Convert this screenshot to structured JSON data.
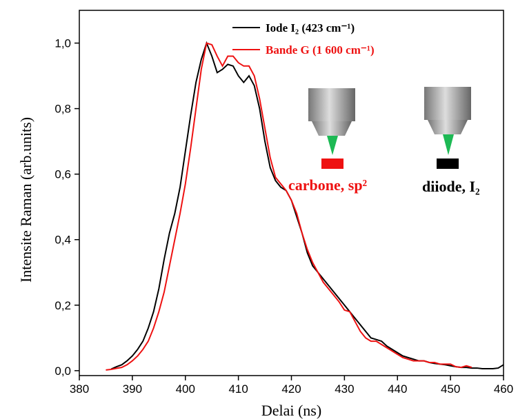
{
  "chart_data": {
    "type": "line",
    "x_label": "Delai (ns)",
    "y_label": "Intensite Raman (arb.units)",
    "xlim": [
      380,
      460
    ],
    "ylim": [
      -0.015,
      1.1
    ],
    "xticks": [
      380,
      390,
      400,
      410,
      420,
      430,
      440,
      450,
      460
    ],
    "yticks": [
      {
        "value": 0,
        "label": "0,0"
      },
      {
        "value": 0.2,
        "label": "0,2"
      },
      {
        "value": 0.4,
        "label": "0,4"
      },
      {
        "value": 0.6,
        "label": "0,6"
      },
      {
        "value": 0.8,
        "label": "0,8"
      },
      {
        "value": 1.0,
        "label": "1,0"
      }
    ],
    "annotations": [
      {
        "text": "carbone, sp²",
        "color": "#ee1111"
      },
      {
        "text": "diiode, I₂",
        "color": "#000000"
      }
    ],
    "series": [
      {
        "name": "Iode I₂ (423 cm⁻¹)",
        "color": "#000000",
        "x": [
          386,
          387,
          388,
          389,
          390,
          391,
          392,
          393,
          394,
          395,
          396,
          397,
          398,
          399,
          400,
          401,
          402,
          403,
          404,
          405,
          406,
          407,
          408,
          409,
          410,
          411,
          412,
          413,
          414,
          415,
          416,
          417,
          418,
          419,
          420,
          421,
          422,
          423,
          424,
          425,
          426,
          427,
          428,
          429,
          430,
          431,
          432,
          433,
          434,
          435,
          436,
          437,
          438,
          439,
          440,
          441,
          442,
          443,
          444,
          445,
          446,
          447,
          448,
          449,
          450,
          451,
          452,
          453,
          454,
          455,
          456,
          457,
          458,
          459,
          460
        ],
        "values": [
          0.005,
          0.012,
          0.018,
          0.03,
          0.045,
          0.065,
          0.09,
          0.13,
          0.18,
          0.25,
          0.34,
          0.42,
          0.48,
          0.56,
          0.67,
          0.78,
          0.88,
          0.95,
          1.0,
          0.96,
          0.91,
          0.92,
          0.935,
          0.93,
          0.9,
          0.88,
          0.9,
          0.87,
          0.8,
          0.7,
          0.62,
          0.58,
          0.56,
          0.55,
          0.52,
          0.47,
          0.42,
          0.36,
          0.32,
          0.3,
          0.28,
          0.26,
          0.24,
          0.22,
          0.2,
          0.18,
          0.16,
          0.14,
          0.12,
          0.1,
          0.095,
          0.09,
          0.075,
          0.065,
          0.055,
          0.045,
          0.04,
          0.035,
          0.03,
          0.03,
          0.025,
          0.022,
          0.02,
          0.018,
          0.015,
          0.012,
          0.01,
          0.01,
          0.008,
          0.008,
          0.006,
          0.006,
          0.006,
          0.008,
          0.018
        ]
      },
      {
        "name": "Bande G (1 600 cm⁻¹)",
        "color": "#ee1111",
        "x": [
          385,
          386,
          387,
          388,
          389,
          390,
          391,
          392,
          393,
          394,
          395,
          396,
          397,
          398,
          399,
          400,
          401,
          402,
          403,
          404,
          405,
          406,
          407,
          408,
          409,
          410,
          411,
          412,
          413,
          414,
          415,
          416,
          417,
          418,
          419,
          420,
          421,
          422,
          423,
          424,
          425,
          426,
          427,
          428,
          429,
          430,
          431,
          432,
          433,
          434,
          435,
          436,
          437,
          438,
          439,
          440,
          441,
          442,
          443,
          444,
          445,
          446,
          447,
          448,
          449,
          450,
          451,
          452,
          453,
          454
        ],
        "values": [
          0.002,
          0.004,
          0.007,
          0.01,
          0.018,
          0.03,
          0.045,
          0.065,
          0.09,
          0.13,
          0.18,
          0.24,
          0.32,
          0.4,
          0.48,
          0.57,
          0.68,
          0.8,
          0.92,
          1.0,
          0.995,
          0.96,
          0.93,
          0.96,
          0.96,
          0.94,
          0.93,
          0.93,
          0.9,
          0.83,
          0.74,
          0.65,
          0.59,
          0.57,
          0.55,
          0.52,
          0.48,
          0.42,
          0.37,
          0.33,
          0.3,
          0.27,
          0.25,
          0.23,
          0.21,
          0.185,
          0.18,
          0.15,
          0.12,
          0.1,
          0.09,
          0.09,
          0.08,
          0.07,
          0.06,
          0.05,
          0.04,
          0.035,
          0.03,
          0.03,
          0.03,
          0.025,
          0.025,
          0.02,
          0.02,
          0.02,
          0.012,
          0.01,
          0.015,
          0.01
        ]
      }
    ]
  }
}
